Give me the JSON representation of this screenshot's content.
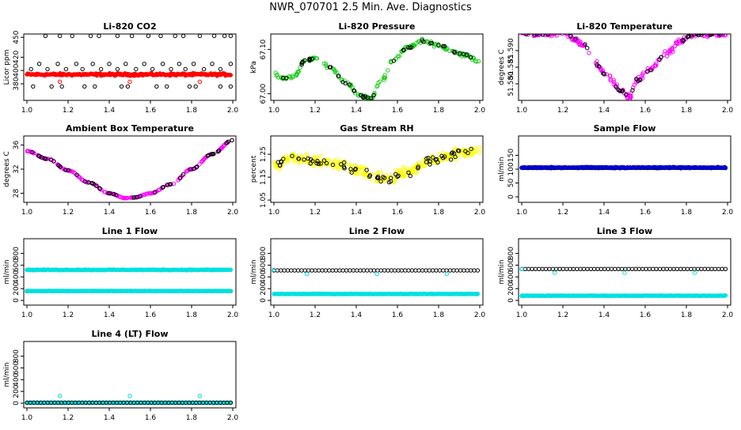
{
  "page": {
    "title": "NWR_070701  2.5 Min. Ave. Diagnostics"
  },
  "colors": {
    "black": "#000000",
    "red": "#ff0000",
    "green": "#22cc22",
    "magenta": "#ff00ff",
    "yellow": "#ffff00",
    "blue": "#0000cc",
    "cyan": "#00e0e0"
  },
  "chart_data": [
    {
      "type": "scatter",
      "title": "Li-820 CO2",
      "ylabel": "Licor ppm",
      "xlim": [
        1.0,
        2.0
      ],
      "ylim": [
        355,
        455
      ],
      "xticks": [
        "1.0",
        "1.2",
        "1.4",
        "1.6",
        "1.8",
        "2.0"
      ],
      "yticks": [
        "380",
        "400",
        "420",
        "450"
      ],
      "series": [
        {
          "name": "outliers-top",
          "color": "#000000",
          "style": "open",
          "y_const": 452,
          "x": [
            1.09,
            1.16,
            1.22,
            1.31,
            1.35,
            1.44,
            1.51,
            1.59,
            1.65,
            1.72,
            1.76,
            1.84,
            1.91,
            1.96,
            1.99
          ]
        },
        {
          "name": "cycle-410",
          "color": "#000000",
          "style": "open",
          "y_const": 410,
          "x": [
            1.06,
            1.15,
            1.24,
            1.32,
            1.4,
            1.48,
            1.57,
            1.66,
            1.74,
            1.81,
            1.9,
            1.99
          ]
        },
        {
          "name": "cycle-402",
          "color": "#000000",
          "style": "open",
          "y_const": 402,
          "x": [
            1.02,
            1.1,
            1.19,
            1.27,
            1.36,
            1.44,
            1.53,
            1.61,
            1.7,
            1.77,
            1.86,
            1.94
          ]
        },
        {
          "name": "cycle-376",
          "color": "#000000",
          "style": "open",
          "y_const": 376,
          "x": [
            1.03,
            1.12,
            1.17,
            1.28,
            1.33,
            1.46,
            1.49,
            1.63,
            1.68,
            1.79,
            1.82,
            1.94,
            1.99
          ]
        },
        {
          "name": "ambient-co2",
          "color": "#ff0000",
          "style": "band",
          "x_range": [
            1.0,
            1.99
          ],
          "y": 394,
          "spread": 2.5
        },
        {
          "name": "red-outliers",
          "color": "#ff0000",
          "style": "open",
          "x": [
            1.16,
            1.5,
            1.84
          ],
          "y": [
            383,
            383,
            383
          ]
        }
      ]
    },
    {
      "type": "scatter",
      "title": "Li-820 Pressure",
      "ylabel": "kPa",
      "xlim": [
        1.0,
        2.0
      ],
      "ylim": [
        66.985,
        67.135
      ],
      "xticks": [
        "1.0",
        "1.2",
        "1.4",
        "1.6",
        "1.8",
        "2.0"
      ],
      "yticks": [
        "67.00",
        "67.10"
      ],
      "series": [
        {
          "name": "pressure-all",
          "color": "#22cc22",
          "style": "curve",
          "n": 190,
          "spread": 0.006,
          "curve_x": [
            1.0,
            1.05,
            1.1,
            1.15,
            1.2,
            1.27,
            1.35,
            1.42,
            1.47,
            1.52,
            1.58,
            1.65,
            1.72,
            1.8,
            1.87,
            1.93,
            2.0
          ],
          "curve_y": [
            67.045,
            67.035,
            67.04,
            67.075,
            67.08,
            67.06,
            67.025,
            66.995,
            66.99,
            67.03,
            67.075,
            67.105,
            67.12,
            67.11,
            67.095,
            67.088,
            67.07
          ]
        },
        {
          "name": "pressure-cycle",
          "color": "#000000",
          "style": "curve",
          "n": 46,
          "spread": 0.003,
          "curve_x": [
            1.0,
            1.05,
            1.1,
            1.15,
            1.2,
            1.27,
            1.35,
            1.42,
            1.47,
            1.52,
            1.58,
            1.65,
            1.72,
            1.8,
            1.87,
            1.93,
            2.0
          ],
          "curve_y": [
            67.045,
            67.035,
            67.04,
            67.075,
            67.08,
            67.06,
            67.025,
            66.995,
            66.99,
            67.03,
            67.075,
            67.105,
            67.12,
            67.11,
            67.095,
            67.088,
            67.07
          ]
        }
      ]
    },
    {
      "type": "scatter",
      "title": "Li-820 Temperature",
      "ylabel": "degrees C",
      "xlim": [
        1.0,
        2.0
      ],
      "ylim": [
        51.575,
        51.595
      ],
      "xticks": [
        "1.0",
        "1.2",
        "1.4",
        "1.6",
        "1.8",
        "2.0"
      ],
      "yticks": [
        "51.580",
        "51.585",
        "51.590"
      ],
      "series": [
        {
          "name": "temp-all",
          "color": "#ff00ff",
          "style": "curve",
          "n": 210,
          "spread": 0.0012,
          "curve_x": [
            1.0,
            1.2,
            1.3,
            1.36,
            1.42,
            1.48,
            1.52,
            1.56,
            1.62,
            1.7,
            1.78,
            1.84,
            1.9,
            2.0
          ],
          "curve_y": [
            51.595,
            51.595,
            51.592,
            51.586,
            51.582,
            51.578,
            51.576,
            51.581,
            51.584,
            51.589,
            51.593,
            51.595,
            51.595,
            51.595
          ]
        },
        {
          "name": "temp-cycle",
          "color": "#000000",
          "style": "curve",
          "n": 48,
          "spread": 0.0008,
          "curve_x": [
            1.0,
            1.2,
            1.3,
            1.36,
            1.42,
            1.48,
            1.52,
            1.56,
            1.62,
            1.7,
            1.78,
            1.84,
            1.9,
            2.0
          ],
          "curve_y": [
            51.595,
            51.595,
            51.592,
            51.586,
            51.582,
            51.578,
            51.576,
            51.581,
            51.584,
            51.589,
            51.593,
            51.595,
            51.595,
            51.595
          ]
        }
      ]
    },
    {
      "type": "scatter",
      "title": "Ambient Box Temperature",
      "ylabel": "degrees C",
      "xlim": [
        1.0,
        2.0
      ],
      "ylim": [
        26.5,
        37.5
      ],
      "xticks": [
        "1.0",
        "1.2",
        "1.4",
        "1.6",
        "1.8",
        "2.0"
      ],
      "yticks": [
        "28",
        "32",
        "36"
      ],
      "series": [
        {
          "name": "box-temp-all",
          "color": "#ff00ff",
          "style": "curve",
          "n": 200,
          "spread": 0.05,
          "curve_x": [
            1.0,
            1.1,
            1.2,
            1.3,
            1.4,
            1.48,
            1.52,
            1.6,
            1.7,
            1.8,
            1.9,
            2.0
          ],
          "curve_y": [
            35,
            33.7,
            31.8,
            29.8,
            28,
            27.2,
            27.3,
            28,
            29.5,
            32,
            34.5,
            36.8
          ]
        },
        {
          "name": "box-temp-cycle",
          "color": "#000000",
          "style": "curve",
          "n": 55,
          "spread": 0.0,
          "curve_x": [
            1.0,
            1.1,
            1.2,
            1.3,
            1.4,
            1.48,
            1.52,
            1.6,
            1.7,
            1.8,
            1.9,
            2.0
          ],
          "curve_y": [
            35,
            33.7,
            31.8,
            29.8,
            28,
            27.2,
            27.3,
            28,
            29.5,
            32,
            34.5,
            36.8
          ]
        }
      ]
    },
    {
      "type": "scatter",
      "title": "Gas Stream RH",
      "ylabel": "percent",
      "xlim": [
        1.0,
        2.0
      ],
      "ylim": [
        1.04,
        1.33
      ],
      "xticks": [
        "1.0",
        "1.2",
        "1.4",
        "1.6",
        "1.8",
        "2.0"
      ],
      "yticks": [
        "1.05",
        "1.15",
        "1.25"
      ],
      "series": [
        {
          "name": "rh-all",
          "color": "#ffff00",
          "style": "curve",
          "n": 300,
          "spread": 0.035,
          "curve_x": [
            1.0,
            1.1,
            1.2,
            1.3,
            1.4,
            1.5,
            1.55,
            1.65,
            1.75,
            1.85,
            1.95,
            2.0
          ],
          "curve_y": [
            1.2,
            1.24,
            1.22,
            1.21,
            1.18,
            1.15,
            1.14,
            1.17,
            1.22,
            1.25,
            1.26,
            1.27
          ]
        },
        {
          "name": "rh-cycle",
          "color": "#000000",
          "style": "curve",
          "n": 70,
          "spread": 0.03,
          "curve_x": [
            1.0,
            1.1,
            1.2,
            1.3,
            1.4,
            1.5,
            1.55,
            1.65,
            1.75,
            1.85,
            1.95,
            2.0
          ],
          "curve_y": [
            1.2,
            1.24,
            1.22,
            1.21,
            1.18,
            1.15,
            1.14,
            1.17,
            1.22,
            1.25,
            1.26,
            1.27
          ]
        }
      ]
    },
    {
      "type": "scatter",
      "title": "Sample Flow",
      "ylabel": "ml/min",
      "xlim": [
        1.0,
        2.0
      ],
      "ylim": [
        -20,
        220
      ],
      "xticks": [
        "1.0",
        "1.2",
        "1.4",
        "1.6",
        "1.8",
        "2.0"
      ],
      "yticks": [
        "0",
        "50",
        "100",
        "150"
      ],
      "series": [
        {
          "name": "sample-flow-cycle",
          "color": "#000000",
          "style": "band",
          "x_range": [
            1.0,
            1.99
          ],
          "y": 105,
          "spread": 2
        },
        {
          "name": "sample-flow-all",
          "color": "#0000cc",
          "style": "band",
          "x_range": [
            1.0,
            1.99
          ],
          "y": 106,
          "spread": 2.5
        }
      ]
    },
    {
      "type": "scatter",
      "title": "Line 1 Flow",
      "ylabel": "ml/min",
      "xlim": [
        1.0,
        2.0
      ],
      "ylim": [
        -80,
        1050
      ],
      "xticks": [
        "1.0",
        "1.2",
        "1.4",
        "1.6",
        "1.8",
        "2.0"
      ],
      "yticks": [
        "0",
        "200",
        "400",
        "600",
        "800"
      ],
      "series": [
        {
          "name": "line1-high",
          "color": "#00e0e0",
          "style": "band",
          "x_range": [
            1.0,
            1.99
          ],
          "y": 520,
          "spread": 10
        },
        {
          "name": "line1-cycle",
          "color": "#000000",
          "style": "open",
          "y_const": 160,
          "x_range": [
            1.0,
            1.99
          ],
          "n": 60
        },
        {
          "name": "line1-low",
          "color": "#00e0e0",
          "style": "band",
          "x_range": [
            1.0,
            1.99
          ],
          "y": 160,
          "spread": 6
        }
      ]
    },
    {
      "type": "scatter",
      "title": "Line 2 Flow",
      "ylabel": "ml/min",
      "xlim": [
        1.0,
        2.0
      ],
      "ylim": [
        -80,
        1050
      ],
      "xticks": [
        "1.0",
        "1.2",
        "1.4",
        "1.6",
        "1.8",
        "2.0"
      ],
      "yticks": [
        "0",
        "200",
        "400",
        "600",
        "800"
      ],
      "series": [
        {
          "name": "line2-cycle",
          "color": "#000000",
          "style": "open",
          "y_const": 510,
          "x_range": [
            1.0,
            1.99
          ],
          "n": 60
        },
        {
          "name": "line2-high",
          "color": "#00e0e0",
          "style": "open",
          "x": [
            1.0,
            1.16,
            1.5,
            1.84
          ],
          "y": [
            520,
            450,
            450,
            450
          ]
        },
        {
          "name": "line2-low",
          "color": "#00e0e0",
          "style": "band",
          "x_range": [
            1.0,
            1.99
          ],
          "y": 110,
          "spread": 7
        }
      ]
    },
    {
      "type": "scatter",
      "title": "Line 3 Flow",
      "ylabel": "ml/min",
      "xlim": [
        1.0,
        2.0
      ],
      "ylim": [
        -80,
        1050
      ],
      "xticks": [
        "1.0",
        "1.2",
        "1.4",
        "1.6",
        "1.8",
        "2.0"
      ],
      "yticks": [
        "0",
        "200",
        "400",
        "600",
        "800"
      ],
      "series": [
        {
          "name": "line3-cycle",
          "color": "#000000",
          "style": "open",
          "y_const": 535,
          "x_range": [
            1.0,
            1.99
          ],
          "n": 60
        },
        {
          "name": "line3-high",
          "color": "#00e0e0",
          "style": "open",
          "x": [
            1.0,
            1.16,
            1.5,
            1.84
          ],
          "y": [
            535,
            470,
            470,
            470
          ]
        },
        {
          "name": "line3-low",
          "color": "#00e0e0",
          "style": "band",
          "x_range": [
            1.0,
            1.99
          ],
          "y": 80,
          "spread": 7
        }
      ]
    },
    {
      "type": "scatter",
      "title": "Line 4 (LT) Flow",
      "ylabel": "ml/min",
      "xlim": [
        1.0,
        2.0
      ],
      "ylim": [
        -80,
        1050
      ],
      "xticks": [
        "1.0",
        "1.2",
        "1.4",
        "1.6",
        "1.8",
        "2.0"
      ],
      "yticks": [
        "0",
        "200",
        "400",
        "600",
        "800"
      ],
      "series": [
        {
          "name": "line4-low",
          "color": "#00e0e0",
          "style": "band",
          "x_range": [
            1.0,
            1.99
          ],
          "y": 8,
          "spread": 2
        },
        {
          "name": "line4-cycle",
          "color": "#000000",
          "style": "open",
          "y_const": 8,
          "x_range": [
            1.0,
            1.99
          ],
          "n": 60
        },
        {
          "name": "line4-spikes",
          "color": "#00e0e0",
          "style": "open",
          "x": [
            1.16,
            1.5,
            1.84
          ],
          "y": [
            125,
            125,
            125
          ]
        }
      ]
    }
  ]
}
